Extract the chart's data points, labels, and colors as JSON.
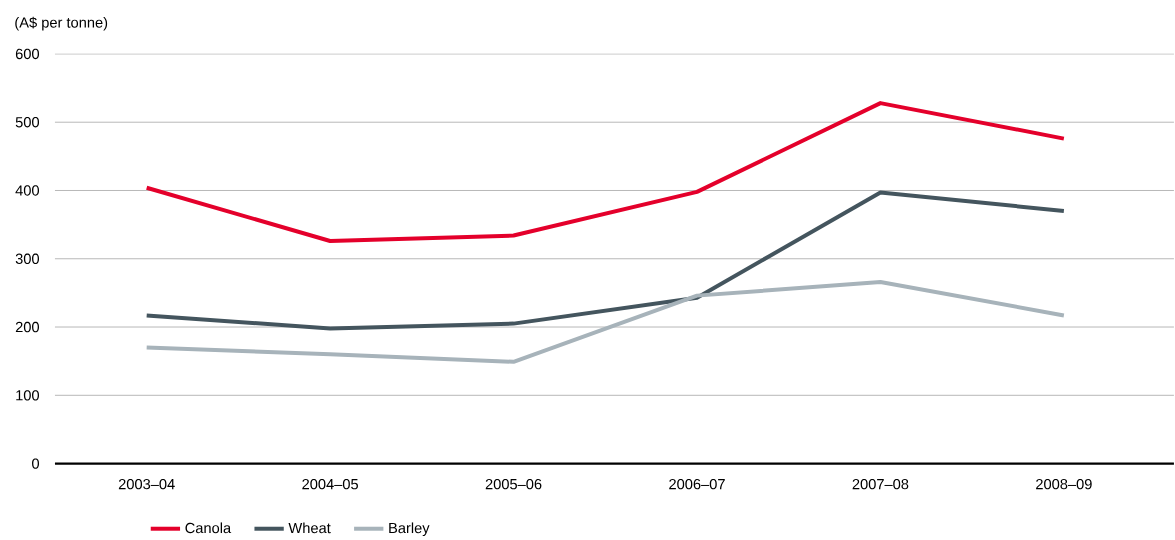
{
  "chart_data": {
    "type": "line",
    "ylabel": "(A$ per tonne)",
    "categories": [
      "2003–04",
      "2004–05",
      "2005–06",
      "2006–07",
      "2007–08",
      "2008–09"
    ],
    "series": [
      {
        "name": "Canola",
        "color": "#e4002b",
        "values": [
          404,
          326,
          334,
          398,
          528,
          476
        ]
      },
      {
        "name": "Wheat",
        "color": "#44555e",
        "values": [
          217,
          198,
          205,
          243,
          397,
          370
        ]
      },
      {
        "name": "Barley",
        "color": "#a7b3ba",
        "values": [
          170,
          160,
          149,
          246,
          266,
          217
        ]
      }
    ],
    "ylim": [
      0,
      600
    ],
    "yticks": [
      0,
      100,
      200,
      300,
      400,
      500,
      600
    ],
    "grid": "y",
    "legend": "bottom left",
    "marker": "none",
    "line_style": "solid"
  }
}
